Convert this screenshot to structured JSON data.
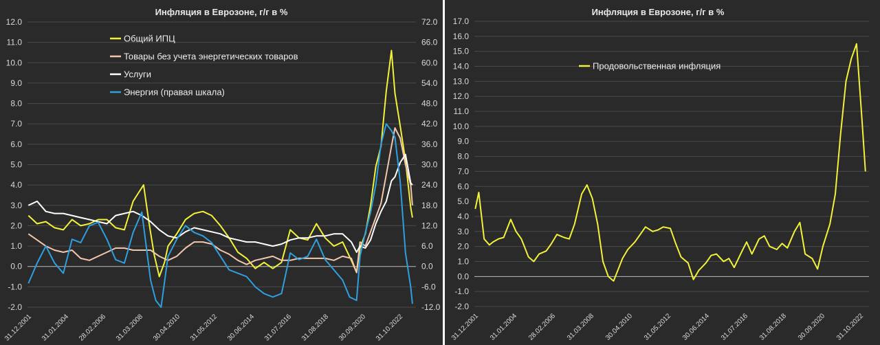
{
  "chart_data": [
    {
      "type": "line",
      "title": "Инфляция в Еврозоне, г/г в %",
      "ylim": [
        -2.0,
        12.0
      ],
      "y_ticks": [
        "12.0",
        "11.0",
        "10.0",
        "9.0",
        "8.0",
        "7.0",
        "6.0",
        "5.0",
        "4.0",
        "3.0",
        "2.0",
        "1.0",
        "0.0",
        "-1.0",
        "-2.0"
      ],
      "y2lim": [
        -12.0,
        72.0
      ],
      "y2_ticks": [
        "72.0",
        "66.0",
        "60.0",
        "54.0",
        "48.0",
        "42.0",
        "36.0",
        "30.0",
        "24.0",
        "18.0",
        "12.0",
        "6.0",
        "0.0",
        "-6.0",
        "-12.0"
      ],
      "x_ticks": [
        "31.12.2001",
        "31.01.2004",
        "28.02.2006",
        "31.03.2008",
        "30.04.2010",
        "31.05.2012",
        "30.06.2014",
        "31.07.2016",
        "31.08.2018",
        "30.09.2020",
        "31.10.2022"
      ],
      "xlim": [
        2001.95,
        2024.2
      ],
      "grid": "horizontal",
      "legend": "top-left",
      "series": [
        {
          "name": "Общий ИПЦ",
          "color": "#f2f23a",
          "axis": "left",
          "x": [
            2002.0,
            2002.5,
            2003.0,
            2003.5,
            2004.0,
            2004.5,
            2005.0,
            2005.5,
            2006.0,
            2006.5,
            2007.0,
            2007.5,
            2008.0,
            2008.3,
            2008.6,
            2008.9,
            2009.2,
            2009.5,
            2009.8,
            2010.0,
            2010.5,
            2011.0,
            2011.5,
            2012.0,
            2012.5,
            2013.0,
            2013.5,
            2014.0,
            2014.5,
            2015.0,
            2015.5,
            2016.0,
            2016.5,
            2017.0,
            2017.5,
            2018.0,
            2018.5,
            2019.0,
            2019.5,
            2020.0,
            2020.5,
            2020.8,
            2021.0,
            2021.3,
            2021.6,
            2021.9,
            2022.2,
            2022.5,
            2022.8,
            2023.0,
            2023.3,
            2023.6,
            2023.9,
            2024.0
          ],
          "values": [
            2.5,
            2.1,
            2.2,
            1.9,
            1.8,
            2.3,
            2.0,
            2.1,
            2.3,
            2.3,
            1.9,
            1.8,
            3.2,
            3.6,
            4.0,
            2.2,
            0.6,
            -0.5,
            0.2,
            1.0,
            1.6,
            2.3,
            2.6,
            2.7,
            2.5,
            2.0,
            1.4,
            0.7,
            0.4,
            -0.1,
            0.2,
            -0.1,
            0.2,
            1.8,
            1.4,
            1.3,
            2.1,
            1.4,
            1.0,
            1.2,
            0.3,
            -0.3,
            0.9,
            1.6,
            3.0,
            4.9,
            5.9,
            8.6,
            10.6,
            8.5,
            6.9,
            5.2,
            2.9,
            2.4
          ]
        },
        {
          "name": "Товары без учета энергетических товаров",
          "color": "#f3c7ae",
          "axis": "left",
          "x": [
            2002.0,
            2002.5,
            2003.0,
            2003.5,
            2004.0,
            2004.5,
            2005.0,
            2005.5,
            2006.0,
            2006.5,
            2007.0,
            2007.5,
            2008.0,
            2008.5,
            2009.0,
            2009.5,
            2010.0,
            2010.5,
            2011.0,
            2011.5,
            2012.0,
            2012.5,
            2013.0,
            2013.5,
            2014.0,
            2014.5,
            2015.0,
            2015.5,
            2016.0,
            2016.5,
            2017.0,
            2017.5,
            2018.0,
            2018.5,
            2019.0,
            2019.5,
            2020.0,
            2020.5,
            2020.8,
            2021.0,
            2021.3,
            2021.6,
            2021.9,
            2022.2,
            2022.5,
            2022.8,
            2023.0,
            2023.3,
            2023.6,
            2023.9,
            2024.0
          ],
          "values": [
            1.6,
            1.3,
            1.0,
            0.8,
            0.7,
            0.8,
            0.4,
            0.3,
            0.5,
            0.7,
            0.9,
            0.9,
            0.8,
            0.8,
            0.8,
            0.5,
            0.3,
            0.5,
            0.9,
            1.2,
            1.2,
            1.1,
            0.8,
            0.6,
            0.3,
            0.1,
            0.3,
            0.4,
            0.5,
            0.3,
            0.3,
            0.4,
            0.4,
            0.4,
            0.4,
            0.3,
            0.5,
            0.4,
            -0.3,
            1.2,
            1.0,
            1.7,
            2.4,
            3.1,
            4.5,
            5.9,
            6.8,
            6.3,
            5.0,
            4.0,
            3.0
          ]
        },
        {
          "name": "Услуги",
          "color": "#ffffff",
          "axis": "left",
          "x": [
            2002.0,
            2002.5,
            2003.0,
            2003.5,
            2004.0,
            2004.5,
            2005.0,
            2005.5,
            2006.0,
            2006.5,
            2007.0,
            2007.5,
            2008.0,
            2008.5,
            2009.0,
            2009.5,
            2010.0,
            2010.5,
            2011.0,
            2011.5,
            2012.0,
            2012.5,
            2013.0,
            2013.5,
            2014.0,
            2014.5,
            2015.0,
            2015.5,
            2016.0,
            2016.5,
            2017.0,
            2017.5,
            2018.0,
            2018.5,
            2019.0,
            2019.5,
            2020.0,
            2020.5,
            2020.8,
            2021.0,
            2021.3,
            2021.6,
            2021.9,
            2022.2,
            2022.5,
            2022.8,
            2023.0,
            2023.3,
            2023.6,
            2023.9,
            2024.0
          ],
          "values": [
            3.0,
            3.2,
            2.7,
            2.6,
            2.6,
            2.5,
            2.4,
            2.3,
            2.2,
            2.1,
            2.5,
            2.6,
            2.7,
            2.5,
            2.2,
            1.8,
            1.5,
            1.4,
            1.7,
            1.9,
            1.8,
            1.7,
            1.6,
            1.4,
            1.3,
            1.2,
            1.2,
            1.1,
            1.0,
            1.1,
            1.3,
            1.4,
            1.4,
            1.5,
            1.5,
            1.6,
            1.6,
            1.2,
            0.7,
            1.0,
            0.9,
            1.3,
            2.1,
            2.7,
            3.2,
            4.2,
            4.4,
            5.1,
            5.5,
            4.1,
            4.0
          ]
        },
        {
          "name": "Энергия (правая шкала)",
          "color": "#2ea0e0",
          "axis": "right",
          "x": [
            2002.0,
            2002.5,
            2003.0,
            2003.5,
            2004.0,
            2004.5,
            2005.0,
            2005.5,
            2006.0,
            2006.5,
            2007.0,
            2007.5,
            2008.0,
            2008.5,
            2009.0,
            2009.3,
            2009.6,
            2010.0,
            2010.5,
            2011.0,
            2011.5,
            2012.0,
            2012.5,
            2013.0,
            2013.5,
            2014.0,
            2014.5,
            2015.0,
            2015.5,
            2016.0,
            2016.5,
            2017.0,
            2017.5,
            2018.0,
            2018.5,
            2019.0,
            2019.5,
            2020.0,
            2020.4,
            2020.8,
            2021.0,
            2021.3,
            2021.6,
            2021.9,
            2022.2,
            2022.5,
            2022.8,
            2023.0,
            2023.3,
            2023.6,
            2023.9,
            2024.0
          ],
          "values": [
            -5.0,
            1.0,
            6.0,
            1.0,
            -2.0,
            8.0,
            7.0,
            12.0,
            13.0,
            8.0,
            2.0,
            1.0,
            10.0,
            16.0,
            -4.0,
            -10.0,
            -12.0,
            3.0,
            8.0,
            12.0,
            10.0,
            9.0,
            7.0,
            3.0,
            -1.0,
            -2.0,
            -3.0,
            -6.0,
            -8.0,
            -9.0,
            -8.0,
            4.0,
            2.0,
            3.0,
            8.0,
            2.0,
            -1.0,
            -4.0,
            -9.0,
            -10.0,
            3.0,
            10.0,
            16.0,
            24.0,
            36.0,
            42.0,
            40.0,
            38.0,
            25.0,
            4.0,
            -6.0,
            -11.0
          ]
        }
      ]
    },
    {
      "type": "line",
      "title": "Инфляция в Еврозоне, г/г в %",
      "ylim": [
        -2.0,
        17.0
      ],
      "y_ticks": [
        "17.0",
        "16.0",
        "15.0",
        "14.0",
        "13.0",
        "12.0",
        "11.0",
        "10.0",
        "9.0",
        "8.0",
        "7.0",
        "6.0",
        "5.0",
        "4.0",
        "3.0",
        "2.0",
        "1.0",
        "0.0",
        "-1.0",
        "-2.0"
      ],
      "x_ticks": [
        "31.12.2001",
        "31.01.2004",
        "28.02.2006",
        "31.03.2008",
        "30.04.2010",
        "31.05.2012",
        "30.06.2014",
        "31.07.2016",
        "31.08.2018",
        "30.09.2020",
        "31.10.2022"
      ],
      "xlim": [
        2001.95,
        2024.2
      ],
      "grid": "horizontal",
      "legend": "top-center",
      "series": [
        {
          "name": "Продовольственная инфляция",
          "color": "#f2f23a",
          "x": [
            2002.0,
            2002.2,
            2002.5,
            2002.8,
            2003.0,
            2003.3,
            2003.6,
            2004.0,
            2004.3,
            2004.6,
            2005.0,
            2005.3,
            2005.6,
            2006.0,
            2006.3,
            2006.6,
            2007.0,
            2007.3,
            2007.6,
            2008.0,
            2008.3,
            2008.6,
            2008.9,
            2009.2,
            2009.5,
            2009.8,
            2010.0,
            2010.3,
            2010.6,
            2011.0,
            2011.3,
            2011.6,
            2012.0,
            2012.3,
            2012.6,
            2013.0,
            2013.3,
            2013.6,
            2014.0,
            2014.3,
            2014.6,
            2015.0,
            2015.3,
            2015.6,
            2016.0,
            2016.3,
            2016.6,
            2017.0,
            2017.3,
            2017.6,
            2018.0,
            2018.3,
            2018.6,
            2019.0,
            2019.3,
            2019.6,
            2020.0,
            2020.3,
            2020.6,
            2021.0,
            2021.3,
            2021.6,
            2022.0,
            2022.3,
            2022.6,
            2022.9,
            2023.2,
            2023.5,
            2023.8,
            2024.0
          ],
          "values": [
            4.5,
            5.6,
            2.5,
            2.1,
            2.3,
            2.5,
            2.6,
            3.8,
            3.0,
            2.5,
            1.3,
            1.0,
            1.5,
            1.7,
            2.2,
            2.8,
            2.6,
            2.5,
            3.5,
            5.5,
            6.1,
            5.2,
            3.5,
            1.0,
            0.0,
            -0.3,
            0.3,
            1.2,
            1.8,
            2.3,
            2.8,
            3.3,
            3.0,
            3.1,
            3.3,
            3.2,
            2.2,
            1.3,
            0.9,
            -0.2,
            0.4,
            0.9,
            1.4,
            1.5,
            1.0,
            1.2,
            0.6,
            1.6,
            2.3,
            1.5,
            2.5,
            2.7,
            2.0,
            1.8,
            2.2,
            1.9,
            3.0,
            3.6,
            1.5,
            1.2,
            0.5,
            2.0,
            3.5,
            5.5,
            9.5,
            13.0,
            14.5,
            15.5,
            10.5,
            7.0
          ]
        }
      ]
    }
  ]
}
